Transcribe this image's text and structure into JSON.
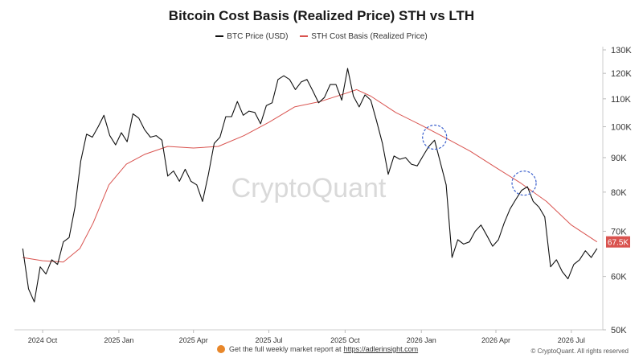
{
  "chart_data": {
    "type": "line",
    "title": "Bitcoin Cost Basis (Realized Price) STH vs LTH",
    "legend_position": "top-center",
    "series": [
      {
        "name": "BTC Price (USD)",
        "color": "#111111",
        "points": [
          [
            "2024-09-07",
            66.0
          ],
          [
            "2024-09-14",
            57.5
          ],
          [
            "2024-09-21",
            55.0
          ],
          [
            "2024-09-28",
            62.0
          ],
          [
            "2024-10-05",
            60.5
          ],
          [
            "2024-10-12",
            63.5
          ],
          [
            "2024-10-19",
            62.5
          ],
          [
            "2024-10-26",
            67.5
          ],
          [
            "2024-11-02",
            68.5
          ],
          [
            "2024-11-09",
            76.0
          ],
          [
            "2024-11-16",
            89.0
          ],
          [
            "2024-11-23",
            97.5
          ],
          [
            "2024-11-30",
            96.5
          ],
          [
            "2024-12-07",
            100.0
          ],
          [
            "2024-12-14",
            104.0
          ],
          [
            "2024-12-21",
            97.0
          ],
          [
            "2024-12-28",
            94.0
          ],
          [
            "2025-01-04",
            98.0
          ],
          [
            "2025-01-11",
            95.0
          ],
          [
            "2025-01-18",
            104.5
          ],
          [
            "2025-01-25",
            103.0
          ],
          [
            "2025-02-01",
            99.0
          ],
          [
            "2025-02-08",
            96.5
          ],
          [
            "2025-02-15",
            97.0
          ],
          [
            "2025-02-22",
            95.5
          ],
          [
            "2025-03-01",
            84.5
          ],
          [
            "2025-03-08",
            86.0
          ],
          [
            "2025-03-15",
            83.0
          ],
          [
            "2025-03-22",
            86.5
          ],
          [
            "2025-03-29",
            83.0
          ],
          [
            "2025-04-05",
            82.0
          ],
          [
            "2025-04-12",
            77.5
          ],
          [
            "2025-04-19",
            85.0
          ],
          [
            "2025-04-26",
            94.5
          ],
          [
            "2025-05-03",
            96.5
          ],
          [
            "2025-05-10",
            103.5
          ],
          [
            "2025-05-17",
            103.5
          ],
          [
            "2025-05-24",
            109.0
          ],
          [
            "2025-05-31",
            104.0
          ],
          [
            "2025-06-07",
            105.5
          ],
          [
            "2025-06-14",
            105.0
          ],
          [
            "2025-06-21",
            101.0
          ],
          [
            "2025-06-28",
            107.5
          ],
          [
            "2025-07-05",
            108.5
          ],
          [
            "2025-07-12",
            117.5
          ],
          [
            "2025-07-19",
            119.0
          ],
          [
            "2025-07-26",
            117.5
          ],
          [
            "2025-08-02",
            113.5
          ],
          [
            "2025-08-09",
            116.5
          ],
          [
            "2025-08-16",
            117.5
          ],
          [
            "2025-08-23",
            113.0
          ],
          [
            "2025-08-30",
            108.5
          ],
          [
            "2025-09-06",
            110.5
          ],
          [
            "2025-09-13",
            115.5
          ],
          [
            "2025-09-20",
            115.5
          ],
          [
            "2025-09-27",
            109.5
          ],
          [
            "2025-10-04",
            122.0
          ],
          [
            "2025-10-11",
            111.0
          ],
          [
            "2025-10-18",
            107.0
          ],
          [
            "2025-10-25",
            111.5
          ],
          [
            "2025-11-01",
            109.5
          ],
          [
            "2025-11-08",
            102.0
          ],
          [
            "2025-11-15",
            94.5
          ],
          [
            "2025-11-22",
            85.0
          ],
          [
            "2025-11-29",
            90.5
          ],
          [
            "2025-12-06",
            89.5
          ],
          [
            "2025-12-13",
            90.0
          ],
          [
            "2025-12-20",
            88.0
          ],
          [
            "2025-12-27",
            87.5
          ],
          [
            "2026-01-03",
            90.5
          ],
          [
            "2026-01-10",
            93.5
          ],
          [
            "2026-01-17",
            95.5
          ],
          [
            "2026-01-24",
            88.5
          ],
          [
            "2026-01-31",
            82.0
          ],
          [
            "2026-02-07",
            64.0
          ],
          [
            "2026-02-14",
            68.0
          ],
          [
            "2026-02-21",
            67.0
          ],
          [
            "2026-02-28",
            67.5
          ],
          [
            "2026-03-07",
            70.0
          ],
          [
            "2026-03-14",
            71.5
          ],
          [
            "2026-03-21",
            69.0
          ],
          [
            "2026-03-28",
            66.5
          ],
          [
            "2026-04-04",
            68.0
          ],
          [
            "2026-04-11",
            72.0
          ],
          [
            "2026-04-18",
            75.5
          ],
          [
            "2026-04-25",
            78.0
          ],
          [
            "2026-05-02",
            80.5
          ],
          [
            "2026-05-09",
            81.5
          ],
          [
            "2026-05-16",
            77.5
          ],
          [
            "2026-05-23",
            76.0
          ],
          [
            "2026-05-30",
            73.5
          ],
          [
            "2026-06-06",
            62.0
          ],
          [
            "2026-06-13",
            63.5
          ],
          [
            "2026-06-20",
            61.0
          ],
          [
            "2026-06-27",
            59.5
          ],
          [
            "2026-07-04",
            62.5
          ],
          [
            "2026-07-11",
            63.5
          ],
          [
            "2026-07-18",
            65.5
          ],
          [
            "2026-07-25",
            64.0
          ],
          [
            "2026-08-01",
            66.0
          ]
        ]
      },
      {
        "name": "STH Cost Basis (Realized Price)",
        "color": "#d9534f",
        "points": [
          [
            "2024-09-07",
            64.0
          ],
          [
            "2024-10-01",
            63.3
          ],
          [
            "2024-10-26",
            63.0
          ],
          [
            "2024-11-15",
            66.0
          ],
          [
            "2024-12-01",
            72.0
          ],
          [
            "2024-12-20",
            82.0
          ],
          [
            "2025-01-10",
            88.0
          ],
          [
            "2025-02-01",
            91.0
          ],
          [
            "2025-03-01",
            93.5
          ],
          [
            "2025-04-01",
            93.0
          ],
          [
            "2025-05-01",
            93.5
          ],
          [
            "2025-06-01",
            97.0
          ],
          [
            "2025-07-01",
            101.5
          ],
          [
            "2025-08-01",
            107.0
          ],
          [
            "2025-09-01",
            109.0
          ],
          [
            "2025-10-01",
            112.0
          ],
          [
            "2025-10-15",
            113.5
          ],
          [
            "2025-11-01",
            111.0
          ],
          [
            "2025-12-01",
            105.0
          ],
          [
            "2026-01-01",
            100.5
          ],
          [
            "2026-02-01",
            96.0
          ],
          [
            "2026-03-01",
            92.0
          ],
          [
            "2026-04-01",
            87.0
          ],
          [
            "2026-05-01",
            82.5
          ],
          [
            "2026-06-01",
            77.5
          ],
          [
            "2026-07-01",
            71.5
          ],
          [
            "2026-08-01",
            67.5
          ]
        ]
      }
    ],
    "y_axis": {
      "scale": "log",
      "ylim": [
        50,
        130
      ],
      "ticks": [
        {
          "value": 50,
          "label": "50K"
        },
        {
          "value": 60,
          "label": "60K"
        },
        {
          "value": 70,
          "label": "70K"
        },
        {
          "value": 80,
          "label": "80K"
        },
        {
          "value": 90,
          "label": "90K"
        },
        {
          "value": 100,
          "label": "100K"
        },
        {
          "value": 110,
          "label": "110K"
        },
        {
          "value": 120,
          "label": "120K"
        },
        {
          "value": 130,
          "label": "130K"
        }
      ],
      "last_value_label": "67.5K",
      "last_value_color": "#d9534f"
    },
    "x_axis": {
      "xlim": [
        "2024-08-28",
        "2026-08-08"
      ],
      "ticks": [
        {
          "date": "2024-10-01",
          "label": "2024 Oct"
        },
        {
          "date": "2025-01-01",
          "label": "2025 Jan"
        },
        {
          "date": "2025-04-01",
          "label": "2025 Apr"
        },
        {
          "date": "2025-07-01",
          "label": "2025 Jul"
        },
        {
          "date": "2025-10-01",
          "label": "2025 Oct"
        },
        {
          "date": "2026-01-01",
          "label": "2026 Jan"
        },
        {
          "date": "2026-04-01",
          "label": "2026 Apr"
        },
        {
          "date": "2026-07-01",
          "label": "2026 Jul"
        }
      ]
    },
    "annotations": [
      {
        "type": "dashed-circle",
        "date": "2026-01-17",
        "value": 96.5,
        "color": "#3a5fcd"
      },
      {
        "type": "dashed-circle",
        "date": "2026-05-05",
        "value": 82.5,
        "color": "#3a5fcd"
      }
    ],
    "grid": false,
    "watermark": "CryptoQuant"
  },
  "footer": {
    "note_text": "Get the full weekly market report at",
    "note_link": "https://adlerinsight.com",
    "copyright": "© CryptoQuant. All rights reserved"
  }
}
